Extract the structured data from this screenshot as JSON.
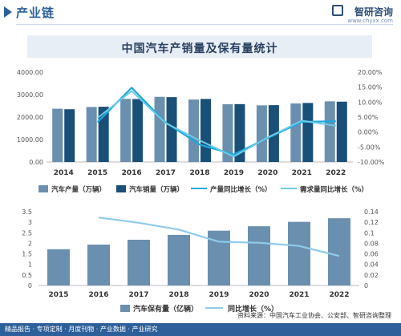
{
  "header": {
    "section_title": "产业链",
    "brand_name": "智研咨询",
    "brand_url": "www.chyxx.com"
  },
  "chart_title": "中国汽车产销量及保有量统计",
  "colors": {
    "production_bar": "#6b8fae",
    "sales_bar": "#1a4f78",
    "production_growth_line": "#1aa9e0",
    "demand_growth_line": "#6ccbe8",
    "stock_bar": "#6b8fae",
    "stock_growth_line": "#8ecbea",
    "accent": "#2d5f9a"
  },
  "chart_data": [
    {
      "type": "bar",
      "categories": [
        "2014",
        "2015",
        "2016",
        "2017",
        "2018",
        "2019",
        "2020",
        "2021",
        "2022"
      ],
      "series": [
        {
          "name": "汽车产量（万辆）",
          "type": "bar",
          "axis": "left",
          "values": [
            2372,
            2450,
            2812,
            2902,
            2781,
            2572,
            2523,
            2608,
            2702
          ]
        },
        {
          "name": "汽车销量（万辆）",
          "type": "bar",
          "axis": "left",
          "values": [
            2349,
            2460,
            2803,
            2888,
            2808,
            2577,
            2531,
            2628,
            2686
          ]
        },
        {
          "name": "产量同比增长（%）",
          "type": "line",
          "axis": "right",
          "values": [
            null,
            3.3,
            14.8,
            3.2,
            -4.2,
            -7.5,
            -2.0,
            3.4,
            3.6
          ]
        },
        {
          "name": "需求量同比增长（%）",
          "type": "line",
          "axis": "right",
          "values": [
            null,
            4.7,
            13.7,
            3.0,
            -2.8,
            -8.2,
            -1.8,
            3.8,
            2.1
          ]
        }
      ],
      "left_ticks": [
        "0.00",
        "1000.00",
        "2000.00",
        "3000.00",
        "4000.00"
      ],
      "left_ylim": [
        0,
        4000
      ],
      "right_ticks": [
        "-10.00%",
        "-5.00%",
        "0.00%",
        "5.00%",
        "10.00%",
        "15.00%",
        "20.00%"
      ],
      "right_ylim": [
        -10,
        20
      ],
      "legend": [
        "汽车产量（万辆）",
        "汽车销量（万辆）",
        "产量同比增长（%）",
        "需求量同比增长（%）"
      ],
      "legend_position": "bottom",
      "grid": false
    },
    {
      "type": "bar",
      "categories": [
        "2015",
        "2016",
        "2017",
        "2018",
        "2019",
        "2020",
        "2021",
        "2022"
      ],
      "series": [
        {
          "name": "汽车保有量（亿辆）",
          "type": "bar",
          "axis": "left",
          "values": [
            1.72,
            1.94,
            2.17,
            2.4,
            2.6,
            2.81,
            3.02,
            3.19
          ]
        },
        {
          "name": "同比增长（%）",
          "type": "line",
          "axis": "right",
          "values": [
            null,
            0.129,
            0.119,
            0.106,
            0.083,
            0.081,
            0.075,
            0.056
          ]
        }
      ],
      "left_ticks": [
        "0",
        "0.5",
        "1",
        "1.5",
        "2",
        "2.5",
        "3",
        "3.5"
      ],
      "left_ylim": [
        0,
        3.5
      ],
      "right_ticks": [
        "0",
        "0.02",
        "0.04",
        "0.06",
        "0.08",
        "0.1",
        "0.12",
        "0.14"
      ],
      "right_ylim": [
        0,
        0.14
      ],
      "legend": [
        "汽车保有量（亿辆）",
        "同比增长（%）"
      ],
      "legend_position": "bottom",
      "grid": false
    }
  ],
  "footer": {
    "source": "资料来源：中国汽车工业协会、公安部、智研咨询整理",
    "services": "精品报告 · 专项定制 · 月度刊物 · 产业数据 · 产业研究"
  }
}
